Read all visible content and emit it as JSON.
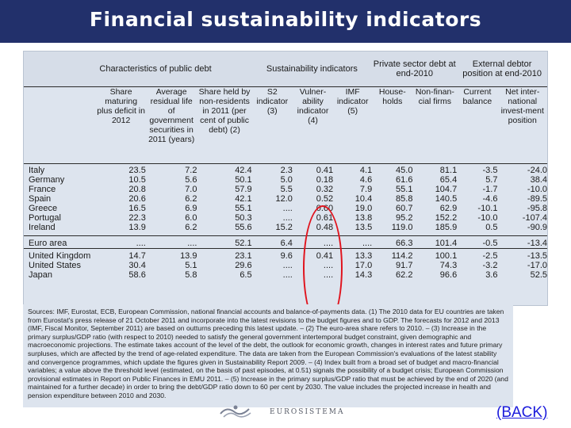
{
  "title": "Financial sustainability indicators",
  "table": {
    "groups": [
      "Characteristics of public debt",
      "Sustainability indicators",
      "Private sector debt at end-2010",
      "External debtor position at end-2010"
    ],
    "columns": [
      "Share maturing plus deficit in 2012",
      "Average residual life of government securities in 2011 (years)",
      "Share held by non-residents in 2011 (per cent of public debt) (2)",
      "S2 indicator (3)",
      "Vulner-ability indicator (4)",
      "IMF indicator (5)",
      "House-holds",
      "Non-finan-cial firms",
      "Current balance",
      "Net inter-national invest-ment position"
    ],
    "rows": [
      {
        "country": "Italy",
        "values": [
          "23.5",
          "7.2",
          "42.4",
          "2.3",
          "0.41",
          "4.1",
          "45.0",
          "81.1",
          "-3.5",
          "-24.0"
        ]
      },
      {
        "country": "Germany",
        "values": [
          "10.5",
          "5.6",
          "50.1",
          "5.0",
          "0.18",
          "4.6",
          "61.6",
          "65.4",
          "5.7",
          "38.4"
        ]
      },
      {
        "country": "France",
        "values": [
          "20.8",
          "7.0",
          "57.9",
          "5.5",
          "0.32",
          "7.9",
          "55.1",
          "104.7",
          "-1.7",
          "-10.0"
        ]
      },
      {
        "country": "Spain",
        "values": [
          "20.6",
          "6.2",
          "42.1",
          "12.0",
          "0.52",
          "10.4",
          "85.8",
          "140.5",
          "-4.6",
          "-89.5"
        ]
      },
      {
        "country": "Greece",
        "values": [
          "16.5",
          "6.9",
          "55.1",
          "....",
          "0.60",
          "19.0",
          "60.7",
          "62.9",
          "-10.1",
          "-95.8"
        ]
      },
      {
        "country": "Portugal",
        "values": [
          "22.3",
          "6.0",
          "50.3",
          "....",
          "0.61",
          "13.8",
          "95.2",
          "152.2",
          "-10.0",
          "-107.4"
        ]
      },
      {
        "country": "Ireland",
        "values": [
          "13.9",
          "6.2",
          "55.6",
          "15.2",
          "0.48",
          "13.5",
          "119.0",
          "185.9",
          "0.5",
          "-90.9"
        ]
      },
      {
        "country": "Euro area",
        "values": [
          "....",
          "....",
          "52.1",
          "6.4",
          "....",
          "....",
          "66.3",
          "101.4",
          "-0.5",
          "-13.4"
        ]
      },
      {
        "country": "United Kingdom",
        "values": [
          "14.7",
          "13.9",
          "23.1",
          "9.6",
          "0.41",
          "13.3",
          "114.2",
          "100.1",
          "-2.5",
          "-13.5"
        ]
      },
      {
        "country": "United States",
        "values": [
          "30.4",
          "5.1",
          "29.6",
          "....",
          "....",
          "17.0",
          "91.7",
          "74.3",
          "-3.2",
          "-17.0"
        ]
      },
      {
        "country": "Japan",
        "values": [
          "58.6",
          "5.8",
          "6.5",
          "....",
          "....",
          "14.3",
          "62.2",
          "96.6",
          "3.6",
          "52.5"
        ]
      }
    ]
  },
  "notes": "Sources: IMF, Eurostat, ECB, European Commission, national financial accounts and balance-of-payments data. (1) The 2010 data for EU countries are taken from Eurostat's press release of 21 October 2011 and incorporate into the latest revisions to the budget figures and to GDP. The forecasts for 2012 and 2013 (IMF, Fiscal Monitor, September 2011) are based on outturns preceding this latest update. – (2) The euro-area share refers to 2010. – (3) Increase in the primary surplus/GDP ratio (with respect to 2010) needed to satisfy the general government intertemporal budget constraint, given demographic and macroeconomic projections. The estimate takes account of the level of the debt, the outlook for economic growth, changes in interest rates and future primary surpluses, which are affected by the trend of age-related expenditure. The data are taken from the European Commission's evaluations of the latest stability and convergence programmes, which update the figures given in Sustainability Report 2009. – (4) Index built from a broad set of budget and macro-financial variables; a value above the threshold level (estimated, on the basis of past episodes, at 0.51) signals the possibility of a budget crisis; European Commission provisional estimates in Report on Public Finances in EMU 2011. – (5) Increase in the primary surplus/GDP ratio that must be achieved by the end of 2020 (and maintained for a further decade) in order to bring the debt/GDP ratio down to 60 per cent by 2030. The value includes the projected increase in health and pension expenditure between 2010 and 2030.",
  "logo_text": "EUROSISTEMA",
  "back_link": "(BACK)",
  "colors": {
    "title_bar": "#22306b",
    "highlight": "#e0141e",
    "link": "#1a1adc"
  }
}
